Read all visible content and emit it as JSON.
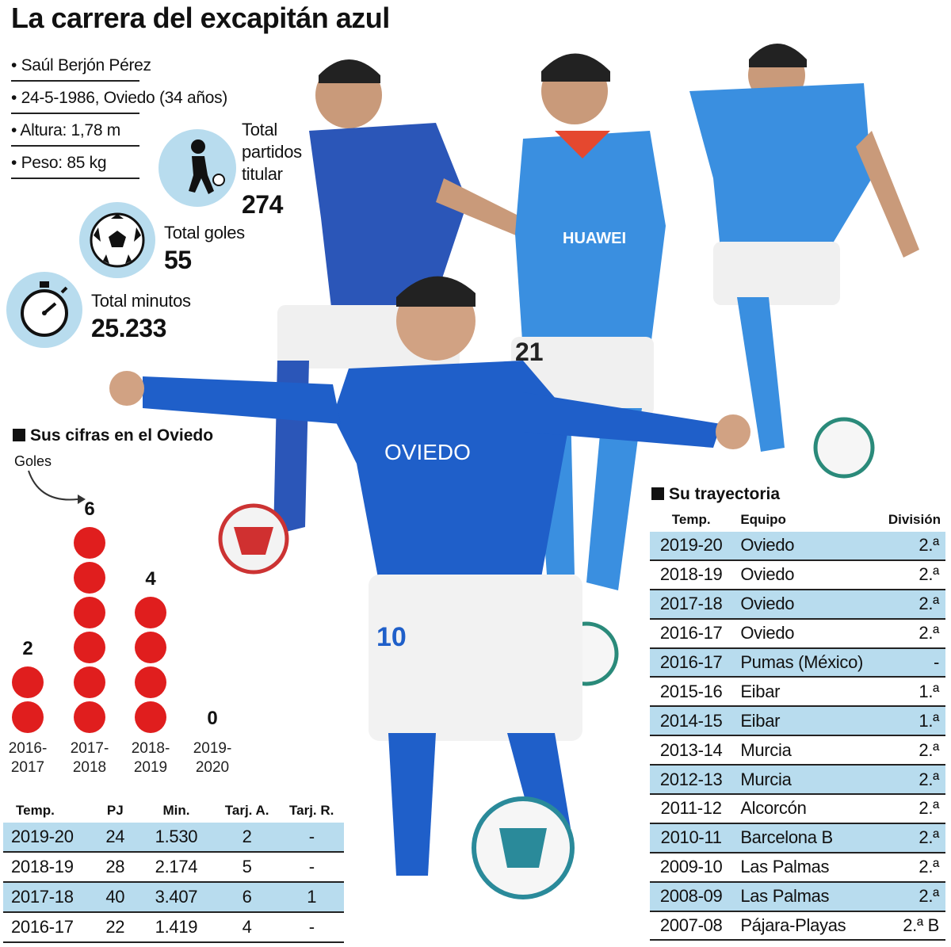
{
  "title": "La carrera del excapitán azul",
  "bio": [
    "• Saúl Berjón Pérez",
    "• 24-5-1986, Oviedo (34 años)",
    "• Altura: 1,78 m",
    "• Peso: 85 kg"
  ],
  "stats": {
    "partidos": {
      "label_lines": [
        "Total",
        "partidos",
        "titular"
      ],
      "value": "274"
    },
    "goles": {
      "label": "Total goles",
      "value": "55"
    },
    "minutos": {
      "label": "Total minutos",
      "value": "25.233"
    }
  },
  "oviedo_section": {
    "title": "Sus cifras en el Oviedo",
    "goals_label": "Goles"
  },
  "chart_data": {
    "type": "bar",
    "categories": [
      "2016-2017",
      "2017-2018",
      "2018-2019",
      "2019-2020"
    ],
    "category_lines": [
      [
        "2016-",
        "2017"
      ],
      [
        "2017-",
        "2018"
      ],
      [
        "2018-",
        "2019"
      ],
      [
        "2019-",
        "2020"
      ]
    ],
    "values": [
      2,
      6,
      4,
      0
    ],
    "value_labels": [
      "2",
      "6",
      "4",
      "0"
    ],
    "ylabel": "Goles",
    "marker": "stacked-dots",
    "color": "#e01e1e"
  },
  "stats_table": {
    "headers": [
      "Temp.",
      "PJ",
      "Min.",
      "Tarj. A.",
      "Tarj. R."
    ],
    "rows": [
      [
        "2019-20",
        "24",
        "1.530",
        "2",
        "-"
      ],
      [
        "2018-19",
        "28",
        "2.174",
        "5",
        "-"
      ],
      [
        "2017-18",
        "40",
        "3.407",
        "6",
        "1"
      ],
      [
        "2016-17",
        "22",
        "1.419",
        "4",
        "-"
      ]
    ]
  },
  "trajectory": {
    "title": "Su trayectoria",
    "headers": [
      "Temp.",
      "Equipo",
      "División"
    ],
    "rows": [
      [
        "2019-20",
        "Oviedo",
        "2.ª"
      ],
      [
        "2018-19",
        "Oviedo",
        "2.ª"
      ],
      [
        "2017-18",
        "Oviedo",
        "2.ª"
      ],
      [
        "2016-17",
        "Oviedo",
        "2.ª"
      ],
      [
        "2016-17",
        "Pumas (México)",
        "-"
      ],
      [
        "2015-16",
        "Eibar",
        "1.ª"
      ],
      [
        "2014-15",
        "Eibar",
        "1.ª"
      ],
      [
        "2013-14",
        "Murcia",
        "2.ª"
      ],
      [
        "2012-13",
        "Murcia",
        "2.ª"
      ],
      [
        "2011-12",
        "Alcorcón",
        "2.ª"
      ],
      [
        "2010-11",
        "Barcelona B",
        "2.ª"
      ],
      [
        "2009-10",
        "Las Palmas",
        "2.ª"
      ],
      [
        "2008-09",
        "Las Palmas",
        "2.ª"
      ],
      [
        "2007-08",
        "Pájara-Playas",
        "2.ª B"
      ]
    ]
  },
  "photo": {
    "kit_blue": "#1f5fc9",
    "kit_light_blue": "#3a8fe0",
    "shirt_texts": [
      "OVIEDO",
      "HUAWEI",
      "10",
      "21"
    ]
  },
  "colors": {
    "accent_blue": "#b8dcee",
    "goal_red": "#e01e1e",
    "text": "#111111"
  }
}
